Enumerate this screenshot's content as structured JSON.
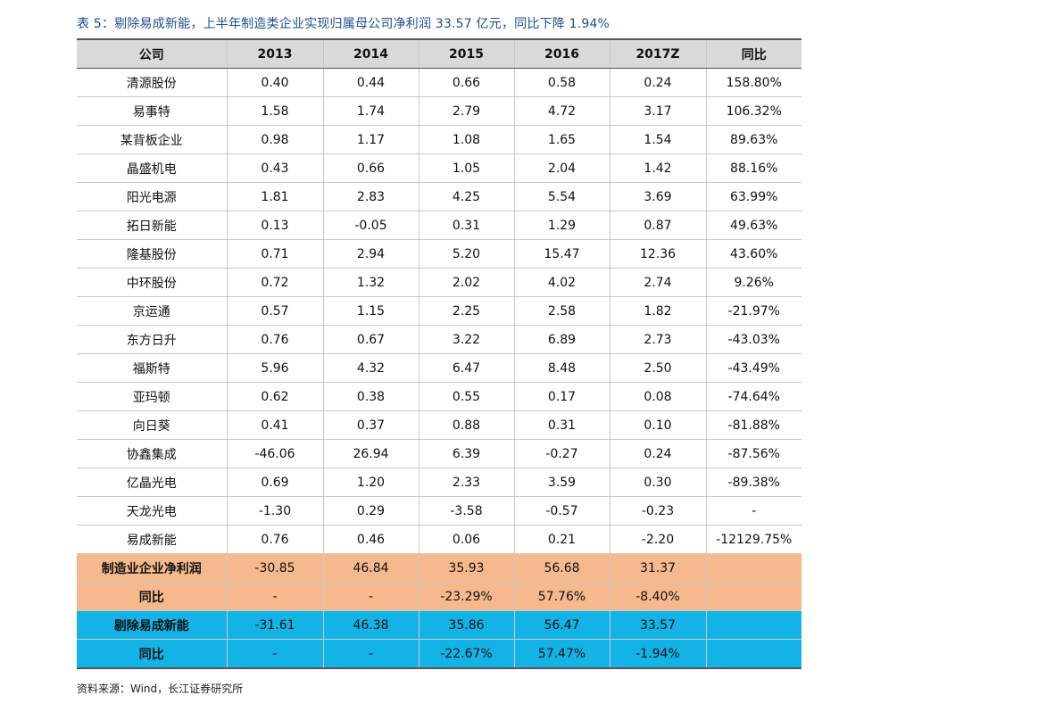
{
  "title": "表 5：剔除易成新能，上半年制造类企业实现归属母公司净利润 33.57 亿元，同比下降 1.94%",
  "table": {
    "headers": [
      "公司",
      "2013",
      "2014",
      "2015",
      "2016",
      "2017Z",
      "同比"
    ],
    "rows": [
      [
        "清源股份",
        "0.40",
        "0.44",
        "0.66",
        "0.58",
        "0.24",
        "158.80%"
      ],
      [
        "易事特",
        "1.58",
        "1.74",
        "2.79",
        "4.72",
        "3.17",
        "106.32%"
      ],
      [
        "某背板企业",
        "0.98",
        "1.17",
        "1.08",
        "1.65",
        "1.54",
        "89.63%"
      ],
      [
        "晶盛机电",
        "0.43",
        "0.66",
        "1.05",
        "2.04",
        "1.42",
        "88.16%"
      ],
      [
        "阳光电源",
        "1.81",
        "2.83",
        "4.25",
        "5.54",
        "3.69",
        "63.99%"
      ],
      [
        "拓日新能",
        "0.13",
        "-0.05",
        "0.31",
        "1.29",
        "0.87",
        "49.63%"
      ],
      [
        "隆基股份",
        "0.71",
        "2.94",
        "5.20",
        "15.47",
        "12.36",
        "43.60%"
      ],
      [
        "中环股份",
        "0.72",
        "1.32",
        "2.02",
        "4.02",
        "2.74",
        "9.26%"
      ],
      [
        "京运通",
        "0.57",
        "1.15",
        "2.25",
        "2.58",
        "1.82",
        "-21.97%"
      ],
      [
        "东方日升",
        "0.76",
        "0.67",
        "3.22",
        "6.89",
        "2.73",
        "-43.03%"
      ],
      [
        "福斯特",
        "5.96",
        "4.32",
        "6.47",
        "8.48",
        "2.50",
        "-43.49%"
      ],
      [
        "亚玛顿",
        "0.62",
        "0.38",
        "0.55",
        "0.17",
        "0.08",
        "-74.64%"
      ],
      [
        "向日葵",
        "0.41",
        "0.37",
        "0.88",
        "0.31",
        "0.10",
        "-81.88%"
      ],
      [
        "协鑫集成",
        "-46.06",
        "26.94",
        "6.39",
        "-0.27",
        "0.24",
        "-87.56%"
      ],
      [
        "亿晶光电",
        "0.69",
        "1.20",
        "2.33",
        "3.59",
        "0.30",
        "-89.38%"
      ],
      [
        "天龙光电",
        "-1.30",
        "0.29",
        "-3.58",
        "-0.57",
        "-0.23",
        "-"
      ],
      [
        "易成新能",
        "0.76",
        "0.46",
        "0.06",
        "0.21",
        "-2.20",
        "-12129.75%"
      ]
    ],
    "summary_rows": [
      {
        "style": "orange",
        "cells": [
          "制造业企业净利润",
          "-30.85",
          "46.84",
          "35.93",
          "56.68",
          "31.37",
          ""
        ]
      },
      {
        "style": "orange",
        "cells": [
          "同比",
          "-",
          "-",
          "-23.29%",
          "57.76%",
          "-8.40%",
          ""
        ]
      },
      {
        "style": "blue",
        "cells": [
          "剔除易成新能",
          "-31.61",
          "46.38",
          "35.86",
          "56.47",
          "33.57",
          ""
        ]
      },
      {
        "style": "blue",
        "cells": [
          "同比",
          "-",
          "-",
          "-22.67%",
          "57.47%",
          "-1.94%",
          ""
        ]
      }
    ]
  },
  "source": "资料来源：Wind，长江证券研究所",
  "colors": {
    "title": "#1f4e8c",
    "header_bg": "#d9d9d9",
    "summary_orange": "#f6b98d",
    "summary_blue": "#13b3e6"
  }
}
